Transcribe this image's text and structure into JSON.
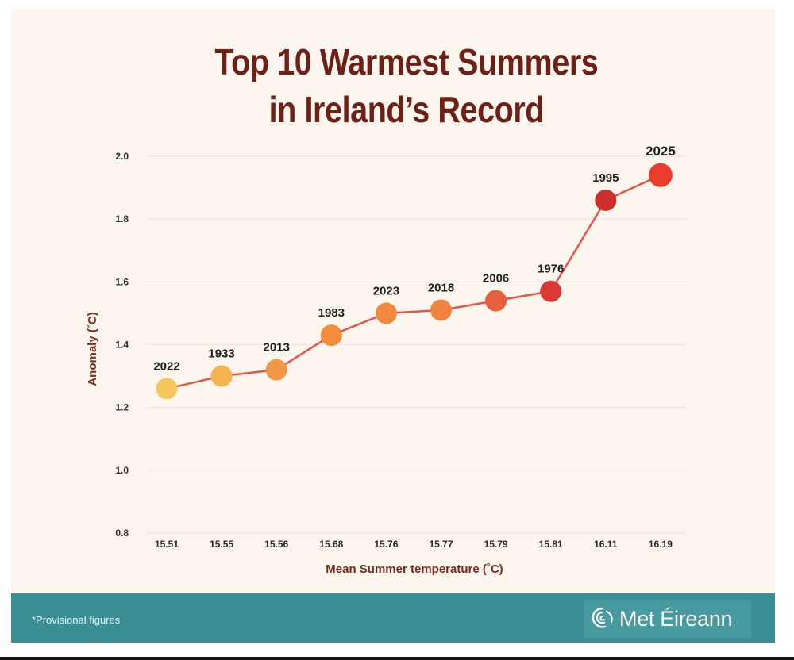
{
  "chart_data": {
    "type": "line",
    "title": [
      "Top 10 Warmest Summers",
      "in Ireland’s Record"
    ],
    "xlabel": "Mean Summer temperature (˚C)",
    "ylabel": "Anomaly (˚C)",
    "ylim": [
      0.8,
      2.0
    ],
    "yticks": [
      "0.8",
      "1.0",
      "1.2",
      "1.4",
      "1.6",
      "1.8",
      "2.0"
    ],
    "grid": true,
    "categories": [
      "15.51",
      "15.55",
      "15.56",
      "15.68",
      "15.76",
      "15.77",
      "15.79",
      "15.81",
      "16.11",
      "16.19"
    ],
    "series": [
      {
        "values": [
          1.26,
          1.3,
          1.32,
          1.43,
          1.5,
          1.51,
          1.54,
          1.57,
          1.86,
          1.94
        ],
        "point_labels": [
          "2022",
          "1933",
          "2013",
          "1983",
          "2023",
          "2018",
          "2006",
          "1976",
          "1995",
          "2025"
        ],
        "point_colors": [
          "#f4c85a",
          "#f6b352",
          "#f49744",
          "#f38b3a",
          "#f28a3e",
          "#ef833f",
          "#e5603b",
          "#d93a33",
          "#cc2e2c",
          "#ea3b2c"
        ],
        "line_color": "#e8544a"
      }
    ]
  },
  "footer": {
    "note": "*Provisional figures",
    "brand": "Met Éireann"
  },
  "colors": {
    "background": "#fcf6ef",
    "title": "#6e1f16",
    "footer_band": "#3a8f95"
  }
}
